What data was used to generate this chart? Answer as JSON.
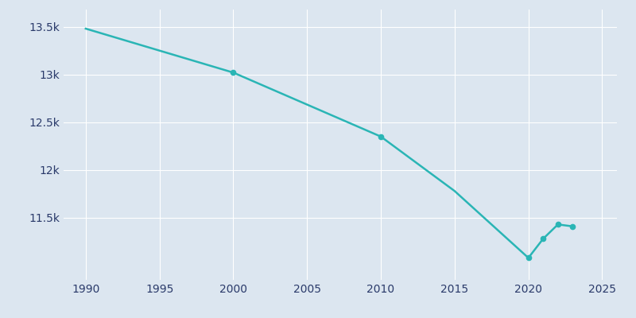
{
  "years": [
    1990,
    2000,
    2010,
    2015,
    2020,
    2021,
    2022,
    2023
  ],
  "population": [
    13480,
    13020,
    12350,
    11780,
    11080,
    11280,
    11430,
    11410
  ],
  "line_color": "#2ab5b5",
  "marker_years": [
    2000,
    2010,
    2020,
    2021,
    2022,
    2023
  ],
  "marker_populations": [
    13020,
    12350,
    11080,
    11280,
    11430,
    11410
  ],
  "axes_facecolor": "#dce6f0",
  "figure_facecolor": "#dce6f0",
  "grid_color": "#ffffff",
  "tick_label_color": "#2a3a6a",
  "xlim": [
    1988.5,
    2026
  ],
  "ylim": [
    10850,
    13680
  ],
  "yticks": [
    11500,
    12000,
    12500,
    13000,
    13500
  ],
  "ytick_labels": [
    "11.5k",
    "12k",
    "12.5k",
    "13k",
    "13.5k"
  ],
  "xticks": [
    1990,
    1995,
    2000,
    2005,
    2010,
    2015,
    2020,
    2025
  ],
  "linewidth": 1.8,
  "markersize": 4.5
}
